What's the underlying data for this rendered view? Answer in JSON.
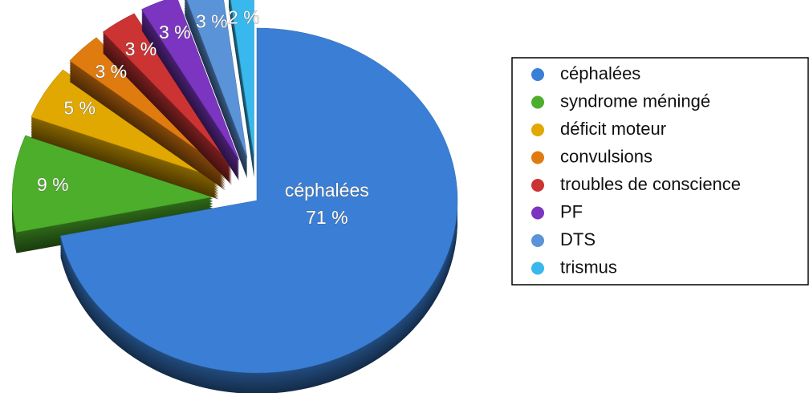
{
  "chart_data": {
    "type": "pie",
    "categories": [
      "céphalées",
      "syndrome méningé",
      "déficit moteur",
      "convulsions",
      "troubles de conscience",
      "PF",
      "DTS",
      "trismus"
    ],
    "values": [
      71,
      9,
      5,
      3,
      3,
      3,
      3,
      2
    ],
    "value_labels": [
      "71 %",
      "9 %",
      "5 %",
      "3 %",
      "3 %",
      "3 %",
      "3 %",
      "2 %"
    ],
    "colors": [
      "#3a7fd5",
      "#4cae2a",
      "#e0a800",
      "#e07b10",
      "#cc3333",
      "#7b35c0",
      "#5b93d8",
      "#38b8ec"
    ],
    "legend": "right"
  }
}
